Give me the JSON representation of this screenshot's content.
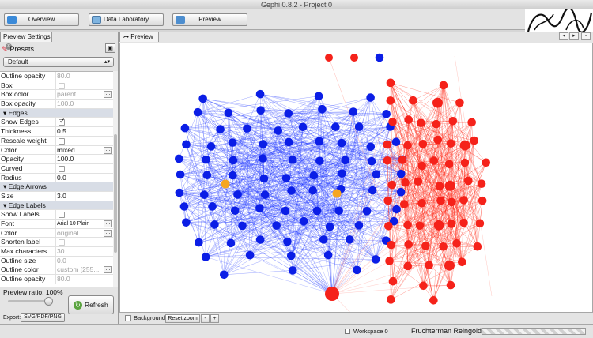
{
  "window": {
    "title": "Gephi 0.8.2 - Project 0"
  },
  "toolbar": {
    "tabs": [
      {
        "label": "Overview",
        "icon": "overview-icon"
      },
      {
        "label": "Data Laboratory",
        "icon": "data-laboratory-icon"
      },
      {
        "label": "Preview",
        "icon": "preview-icon"
      }
    ]
  },
  "left_panel": {
    "tab_label": "Preview Settings",
    "presets_label": "Presets",
    "preset_selected": "Default",
    "rows": [
      {
        "type": "prop",
        "key": "Outline opacity",
        "value": "80.0",
        "dim": true
      },
      {
        "type": "check",
        "key": "Box",
        "checked": false,
        "dim": true
      },
      {
        "type": "prop",
        "key": "Box color",
        "value": "parent",
        "dim": true,
        "dots": true
      },
      {
        "type": "prop",
        "key": "Box opacity",
        "value": "100.0",
        "dim": true
      },
      {
        "type": "cat",
        "key": "Edges"
      },
      {
        "type": "check",
        "key": "Show Edges",
        "checked": true
      },
      {
        "type": "prop",
        "key": "Thickness",
        "value": "0.5"
      },
      {
        "type": "check",
        "key": "Rescale weight",
        "checked": false
      },
      {
        "type": "prop",
        "key": "Color",
        "value": "mixed",
        "dots": true
      },
      {
        "type": "prop",
        "key": "Opacity",
        "value": "100.0"
      },
      {
        "type": "check",
        "key": "Curved",
        "checked": false
      },
      {
        "type": "prop",
        "key": "Radius",
        "value": "0.0"
      },
      {
        "type": "cat",
        "key": "Edge Arrows"
      },
      {
        "type": "prop",
        "key": "Size",
        "value": "3.0"
      },
      {
        "type": "cat",
        "key": "Edge Labels"
      },
      {
        "type": "check",
        "key": "Show Labels",
        "checked": false
      },
      {
        "type": "prop",
        "key": "Font",
        "value": "Arial 10 Plain",
        "small": true,
        "dots": true
      },
      {
        "type": "prop",
        "key": "Color",
        "value": "original",
        "dim": true,
        "dots": true
      },
      {
        "type": "check",
        "key": "Shorten label",
        "checked": false,
        "dim": true
      },
      {
        "type": "prop",
        "key": "Max characters",
        "value": "30",
        "dim": true
      },
      {
        "type": "prop",
        "key": "Outline size",
        "value": "0.0",
        "dim": true
      },
      {
        "type": "prop",
        "key": "Outline color",
        "value": "custom [255,...",
        "dim": true,
        "dots": true
      },
      {
        "type": "prop",
        "key": "Outline opacity",
        "value": "80.0",
        "dim": true
      }
    ],
    "preview_ratio": "Preview ratio: 100%",
    "preview_ratio_value": 100,
    "refresh_label": "Refresh",
    "export_label": "Export:",
    "export_button": "SVG/PDF/PNG"
  },
  "preview_panel": {
    "tab_label": "Preview",
    "background_label": "Background",
    "reset_zoom_label": "Reset zoom",
    "zoom_out_label": "-",
    "zoom_in_label": "+"
  },
  "graph": {
    "colors": {
      "blue": "#0b1ee6",
      "red": "#f5221a",
      "orange": "#f5a623",
      "blue_edge": "#1a33ff",
      "red_edge": "#ff2b1a"
    }
  },
  "statusbar": {
    "workspace_label": "Workspace 0",
    "layout_label": "Fruchterman Reingold"
  }
}
